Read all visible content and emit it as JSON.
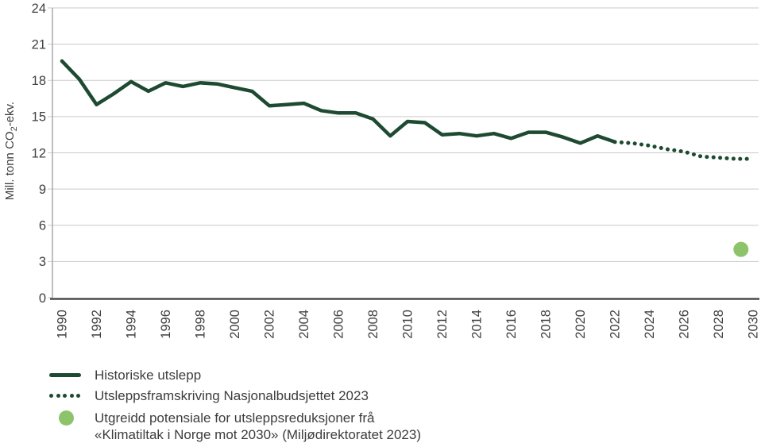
{
  "chart_data": {
    "type": "line",
    "title": "",
    "xlabel": "",
    "ylabel_parts": {
      "prefix": "Mill. tonn CO",
      "sub": "2",
      "suffix": "-ekv."
    },
    "ylim": [
      0,
      24
    ],
    "ytick_step": 3,
    "ytick_labels": [
      "0",
      "3",
      "6",
      "9",
      "12",
      "15",
      "18",
      "21",
      "24"
    ],
    "xtick_years": [
      1990,
      1992,
      1994,
      1996,
      1998,
      2000,
      2002,
      2004,
      2006,
      2008,
      2010,
      2012,
      2014,
      2016,
      2018,
      2020,
      2022,
      2024,
      2026,
      2028,
      2030
    ],
    "grid": true,
    "legend_position": "bottom-left",
    "series": [
      {
        "name": "Historiske utslepp",
        "style": "solid",
        "color": "#1d4a31",
        "x": [
          1990,
          1991,
          1992,
          1993,
          1994,
          1995,
          1996,
          1997,
          1998,
          1999,
          2000,
          2001,
          2002,
          2003,
          2004,
          2005,
          2006,
          2007,
          2008,
          2009,
          2010,
          2011,
          2012,
          2013,
          2014,
          2015,
          2016,
          2017,
          2018,
          2019,
          2020,
          2021,
          2022
        ],
        "values": [
          19.6,
          18.1,
          16.0,
          16.9,
          17.9,
          17.1,
          17.8,
          17.5,
          17.8,
          17.7,
          17.4,
          17.1,
          15.9,
          16.0,
          16.1,
          15.5,
          15.3,
          15.3,
          14.8,
          13.4,
          14.6,
          14.5,
          13.5,
          13.6,
          13.4,
          13.6,
          13.2,
          13.7,
          13.7,
          13.3,
          12.8,
          13.4,
          12.9
        ]
      },
      {
        "name": "Utsleppsframskriving Nasjonalbudsjettet 2023",
        "style": "dotted",
        "color": "#1d4a31",
        "x": [
          2022,
          2023,
          2024,
          2025,
          2026,
          2027,
          2028,
          2029,
          2030
        ],
        "values": [
          12.9,
          12.8,
          12.6,
          12.3,
          12.1,
          11.7,
          11.6,
          11.5,
          11.5
        ]
      },
      {
        "name": "Utgreidd potensiale for utsleppsreduksjoner frå «Klimatiltak i Norge mot 2030» (Miljødirektoratet 2023)",
        "style": "point",
        "color": "#8dc46b",
        "x": [
          2029.3
        ],
        "values": [
          4.0
        ]
      }
    ]
  },
  "legend": {
    "items": [
      {
        "label": "Historiske utslepp",
        "marker": "solid-line"
      },
      {
        "label": "Utsleppsframskriving Nasjonalbudsjettet 2023",
        "marker": "dotted-line"
      },
      {
        "label": "Utgreidd potensiale for utsleppsreduksjoner frå",
        "label2": "«Klimatiltak i Norge mot 2030» (Miljødirektoratet 2023)",
        "marker": "dot"
      }
    ]
  },
  "colors": {
    "line_dark_green": "#1d4a31",
    "dot_light_green": "#8dc46b",
    "gridline": "#cacaca",
    "axis_left": "#aaaaaa",
    "axis_bottom": "#4a4a4a",
    "text": "#404040"
  }
}
